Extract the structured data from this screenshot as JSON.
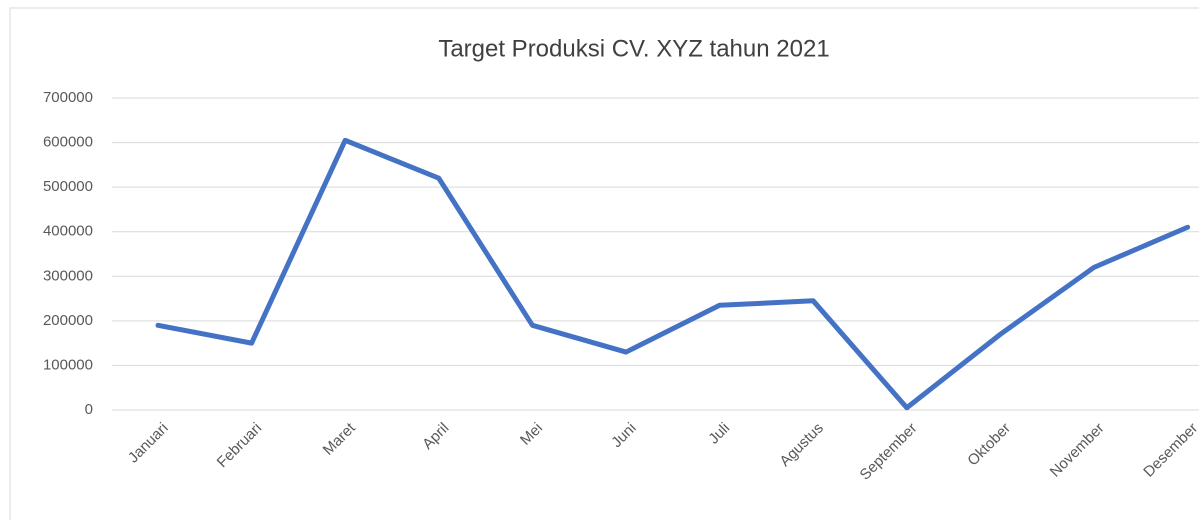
{
  "chart_data": {
    "type": "line",
    "title": "Target Produksi CV. XYZ tahun 2021",
    "categories": [
      "Januari",
      "Februari",
      "Maret",
      "April",
      "Mei",
      "Juni",
      "Juli",
      "Agustus",
      "September",
      "Oktober",
      "November",
      "Desember"
    ],
    "series": [
      {
        "name": "Target Produksi",
        "color": "#4472c4",
        "values": [
          190000,
          150000,
          605000,
          520000,
          190000,
          130000,
          235000,
          245000,
          5000,
          170000,
          320000,
          410000
        ]
      }
    ],
    "ylim": [
      0,
      700000
    ],
    "yticks": [
      0,
      100000,
      200000,
      300000,
      400000,
      500000,
      600000,
      700000
    ],
    "grid": true
  }
}
